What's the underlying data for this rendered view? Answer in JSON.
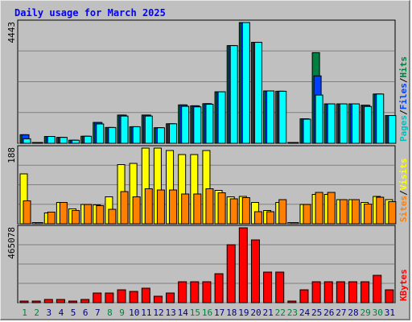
{
  "chart_data": {
    "type": "bar",
    "title": "Daily usage for March 2025",
    "categories": [
      "1",
      "2",
      "3",
      "4",
      "5",
      "6",
      "7",
      "8",
      "9",
      "10",
      "11",
      "12",
      "13",
      "14",
      "15",
      "16",
      "17",
      "18",
      "19",
      "20",
      "21",
      "22",
      "23",
      "24",
      "25",
      "26",
      "27",
      "28",
      "29",
      "30",
      "31"
    ],
    "weekend_days": [
      "1",
      "2",
      "8",
      "9",
      "15",
      "16",
      "22",
      "23",
      "29",
      "30"
    ],
    "panels": [
      {
        "name": "top",
        "ymax_label": "4443",
        "ymax": 4443,
        "series_labels": [
          "Pages",
          "Files",
          "Hits"
        ],
        "series": [
          {
            "name": "Hits",
            "color": "#008040",
            "values": [
              315,
              26,
              251,
              217,
              113,
              259,
              767,
              581,
              1039,
              609,
              1039,
              572,
              717,
              1412,
              1380,
              1457,
              1895,
              3594,
              4443,
              3715,
              1926,
              1914,
              19,
              901,
              3336,
              1450,
              1450,
              1450,
              1400,
              1812,
              1021
            ]
          },
          {
            "name": "Files",
            "color": "#0040ff",
            "values": [
              315,
              26,
              251,
              217,
              113,
              259,
              767,
              581,
              1039,
              609,
              1039,
              572,
              717,
              1412,
              1380,
              1457,
              1895,
              3594,
              4443,
              3715,
              1926,
              1914,
              19,
              901,
              2480,
              1450,
              1450,
              1450,
              1400,
              1812,
              1021
            ]
          },
          {
            "name": "Pages",
            "color": "#00ffff",
            "values": [
              165,
              26,
              251,
              217,
              113,
              259,
              712,
              581,
              1003,
              609,
              1003,
              572,
              717,
              1360,
              1341,
              1435,
              1895,
              3594,
              4443,
              3715,
              1926,
              1914,
              19,
              887,
              1775,
              1450,
              1450,
              1450,
              1355,
              1812,
              1021
            ]
          }
        ]
      },
      {
        "name": "middle",
        "ymax_label": "188",
        "ymax": 188,
        "series_labels": [
          "Sites",
          "Visits"
        ],
        "series": [
          {
            "name": "Visits",
            "color": "#ffff00",
            "values": [
              124,
              3,
              27,
              53,
              37,
              48,
              47,
              67,
              147,
              150,
              188,
              188,
              182,
              172,
              172,
              182,
              83,
              67,
              68,
              53,
              33,
              53,
              3,
              48,
              73,
              73,
              60,
              60,
              53,
              68,
              60
            ]
          },
          {
            "name": "Sites",
            "color": "#ff8000",
            "values": [
              57,
              3,
              29,
              53,
              33,
              48,
              45,
              36,
              80,
              67,
              87,
              84,
              84,
              74,
              74,
              87,
              77,
              62,
              65,
              30,
              30,
              60,
              3,
              48,
              78,
              78,
              60,
              60,
              49,
              66,
              55
            ]
          }
        ]
      },
      {
        "name": "bottom",
        "ymax_label": "465078",
        "ymax": 465078,
        "series_labels": [
          "KBytes"
        ],
        "series": [
          {
            "name": "KBytes",
            "color": "#ff0000",
            "values": [
              10000,
              10000,
              20000,
              20000,
              10000,
              20000,
              60000,
              60000,
              80000,
              70000,
              90000,
              40000,
              60000,
              130000,
              130000,
              130000,
              180000,
              360000,
              465078,
              390000,
              190000,
              190000,
              10000,
              80000,
              130000,
              130000,
              130000,
              130000,
              130000,
              170000,
              80000
            ]
          }
        ]
      }
    ],
    "label_colors": {
      "title": "#0000ff",
      "Pages": "#00c0c0",
      "Files": "#0040ff",
      "Hits": "#008040",
      "Sites": "#ff8000",
      "Visits": "#ffff00",
      "KBytes": "#ff0000",
      "weekday_label": "#000080",
      "weekend_label": "#008040"
    },
    "grid": true
  }
}
